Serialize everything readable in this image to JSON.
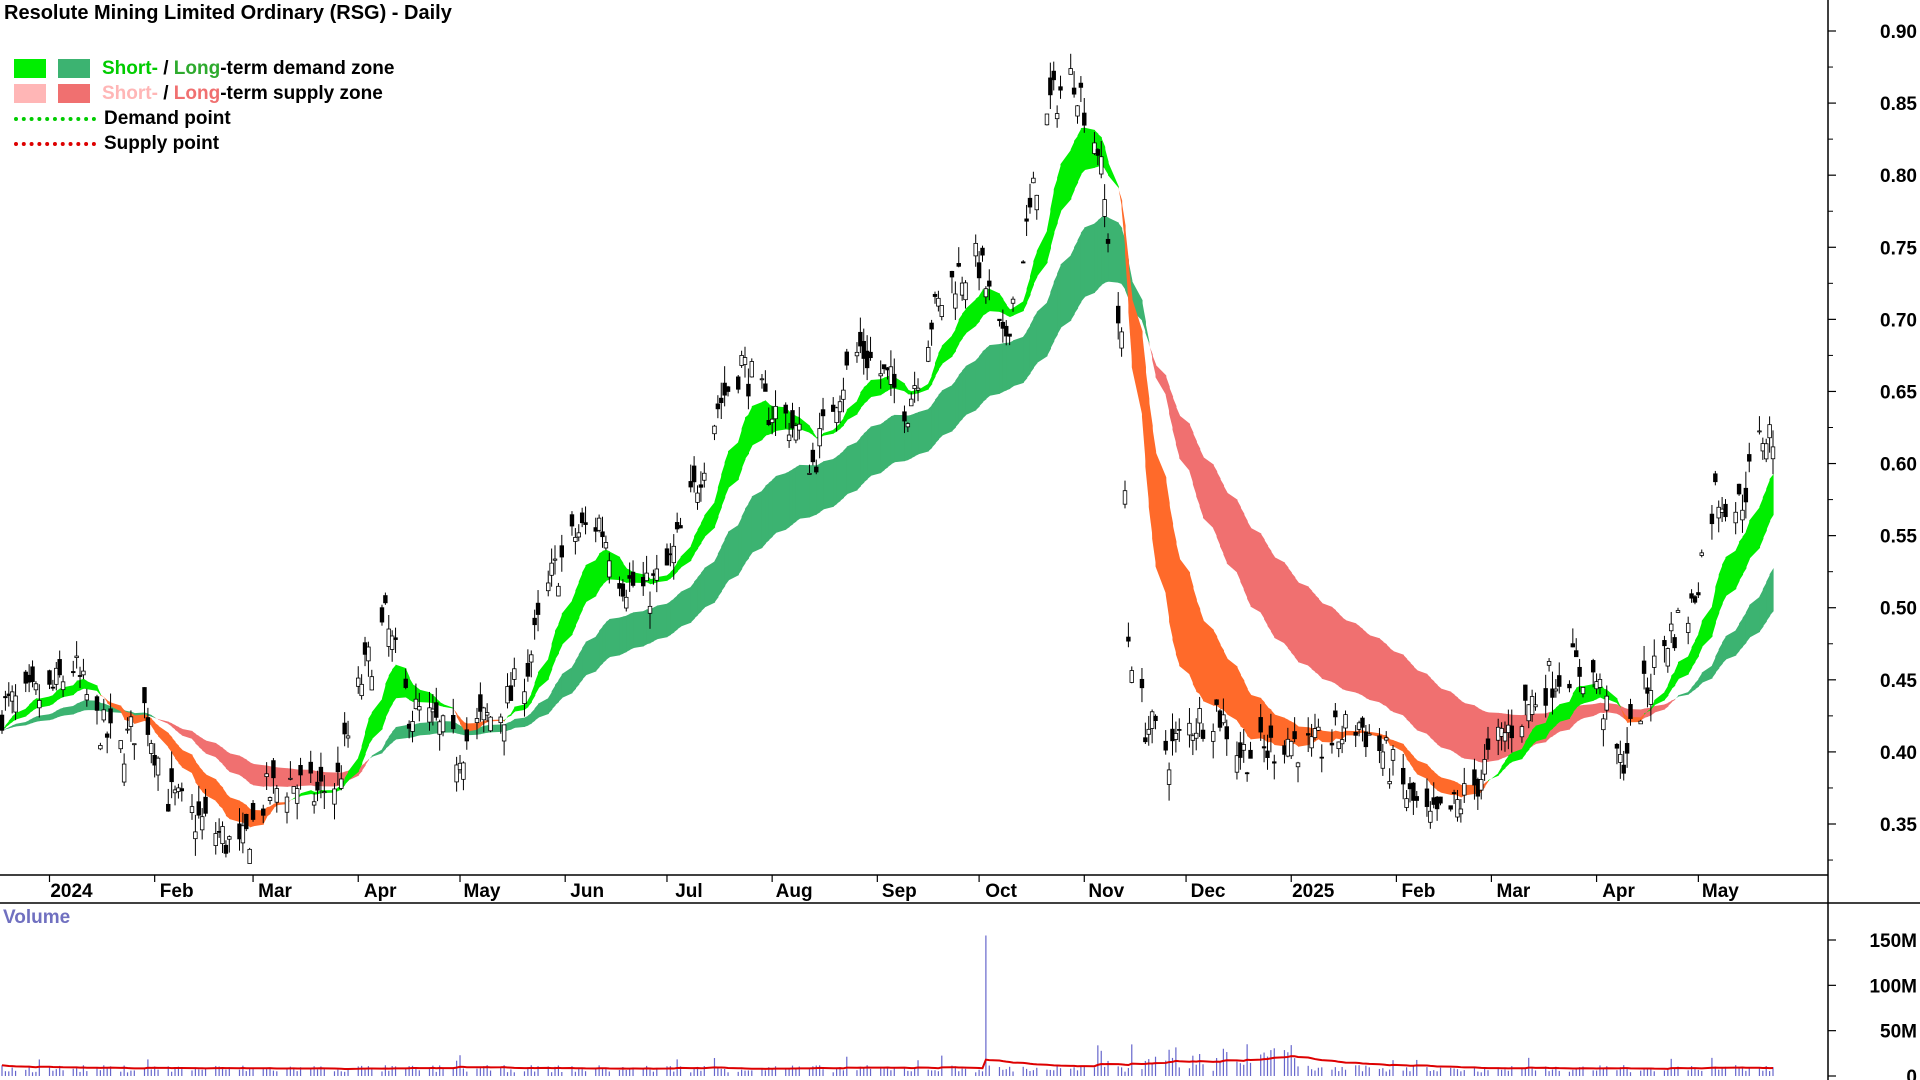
{
  "title": "Resolute Mining Limited Ordinary (RSG) - Daily",
  "legend": {
    "short_word": "Short-",
    "long_word": "Long",
    "demand_tail": "-term demand zone",
    "supply_tail": "-term supply zone",
    "sep": " / ",
    "demand_point": "Demand point",
    "supply_point": "Supply point"
  },
  "colors": {
    "short_demand": "#00ee00",
    "long_demand": "#3cb371",
    "short_supply": "#ffb6b6",
    "long_supply": "#f07070",
    "orange_zone": "#ff6a2a",
    "demand_point": "#00cc00",
    "supply_point": "#dd0000",
    "volume_bar": "#6666cc",
    "volume_avg": "#dd0000"
  },
  "volume_label": "Volume",
  "chart_data": {
    "type": "candlestick",
    "x_tick_labels": [
      "2024",
      "Feb",
      "Mar",
      "Apr",
      "May",
      "Jun",
      "Jul",
      "Aug",
      "Sep",
      "Oct",
      "Nov",
      "Dec",
      "2025",
      "Feb",
      "Mar",
      "Apr",
      "May"
    ],
    "price_axis": {
      "ticks": [
        "0.90",
        "0.85",
        "0.80",
        "0.75",
        "0.70",
        "0.65",
        "0.60",
        "0.55",
        "0.50",
        "0.45",
        "0.40",
        "0.35"
      ],
      "range": [
        0.315,
        0.915
      ]
    },
    "volume_axis": {
      "ticks": [
        "150M",
        "100M",
        "50M",
        "0"
      ],
      "range": [
        0,
        180
      ]
    },
    "price_anchors": [
      [
        "2023-12-18",
        0.43
      ],
      [
        "2024-01-01",
        0.44
      ],
      [
        "2024-01-08",
        0.46
      ],
      [
        "2024-01-15",
        0.42
      ],
      [
        "2024-01-22",
        0.4
      ],
      [
        "2024-01-29",
        0.43
      ],
      [
        "2024-02-05",
        0.37
      ],
      [
        "2024-02-12",
        0.355
      ],
      [
        "2024-02-19",
        0.345
      ],
      [
        "2024-02-26",
        0.33
      ],
      [
        "2024-03-05",
        0.37
      ],
      [
        "2024-03-12",
        0.38
      ],
      [
        "2024-03-19",
        0.37
      ],
      [
        "2024-03-26",
        0.38
      ],
      [
        "2024-04-02",
        0.45
      ],
      [
        "2024-04-09",
        0.49
      ],
      [
        "2024-04-16",
        0.43
      ],
      [
        "2024-04-23",
        0.42
      ],
      [
        "2024-04-30",
        0.4
      ],
      [
        "2024-05-07",
        0.42
      ],
      [
        "2024-05-14",
        0.43
      ],
      [
        "2024-05-21",
        0.46
      ],
      [
        "2024-05-28",
        0.52
      ],
      [
        "2024-06-04",
        0.55
      ],
      [
        "2024-06-11",
        0.56
      ],
      [
        "2024-06-18",
        0.52
      ],
      [
        "2024-06-25",
        0.51
      ],
      [
        "2024-07-02",
        0.53
      ],
      [
        "2024-07-09",
        0.58
      ],
      [
        "2024-07-16",
        0.64
      ],
      [
        "2024-07-23",
        0.67
      ],
      [
        "2024-07-30",
        0.64
      ],
      [
        "2024-08-06",
        0.63
      ],
      [
        "2024-08-13",
        0.6
      ],
      [
        "2024-08-20",
        0.65
      ],
      [
        "2024-08-27",
        0.68
      ],
      [
        "2024-09-03",
        0.66
      ],
      [
        "2024-09-10",
        0.64
      ],
      [
        "2024-09-17",
        0.7
      ],
      [
        "2024-09-24",
        0.73
      ],
      [
        "2024-10-01",
        0.74
      ],
      [
        "2024-10-08",
        0.68
      ],
      [
        "2024-10-15",
        0.76
      ],
      [
        "2024-10-22",
        0.85
      ],
      [
        "2024-10-29",
        0.87
      ],
      [
        "2024-11-05",
        0.82
      ],
      [
        "2024-11-08",
        0.76
      ],
      [
        "2024-11-12",
        0.68
      ],
      [
        "2024-11-14",
        0.48
      ],
      [
        "2024-11-19",
        0.42
      ],
      [
        "2024-11-26",
        0.4
      ],
      [
        "2024-12-03",
        0.42
      ],
      [
        "2024-12-10",
        0.43
      ],
      [
        "2024-12-17",
        0.4
      ],
      [
        "2024-12-24",
        0.4
      ],
      [
        "2024-12-31",
        0.41
      ],
      [
        "2025-01-07",
        0.4
      ],
      [
        "2025-01-14",
        0.41
      ],
      [
        "2025-01-21",
        0.42
      ],
      [
        "2025-01-28",
        0.4
      ],
      [
        "2025-02-04",
        0.37
      ],
      [
        "2025-02-11",
        0.35
      ],
      [
        "2025-02-18",
        0.36
      ],
      [
        "2025-02-25",
        0.38
      ],
      [
        "2025-03-04",
        0.41
      ],
      [
        "2025-03-11",
        0.43
      ],
      [
        "2025-03-18",
        0.45
      ],
      [
        "2025-03-25",
        0.46
      ],
      [
        "2025-04-01",
        0.45
      ],
      [
        "2025-04-08",
        0.39
      ],
      [
        "2025-04-15",
        0.44
      ],
      [
        "2025-04-22",
        0.48
      ],
      [
        "2025-04-29",
        0.5
      ],
      [
        "2025-05-06",
        0.58
      ],
      [
        "2025-05-13",
        0.57
      ],
      [
        "2025-05-20",
        0.62
      ]
    ],
    "volume_spike": {
      "date": "2024-10-03",
      "value": 155
    }
  }
}
